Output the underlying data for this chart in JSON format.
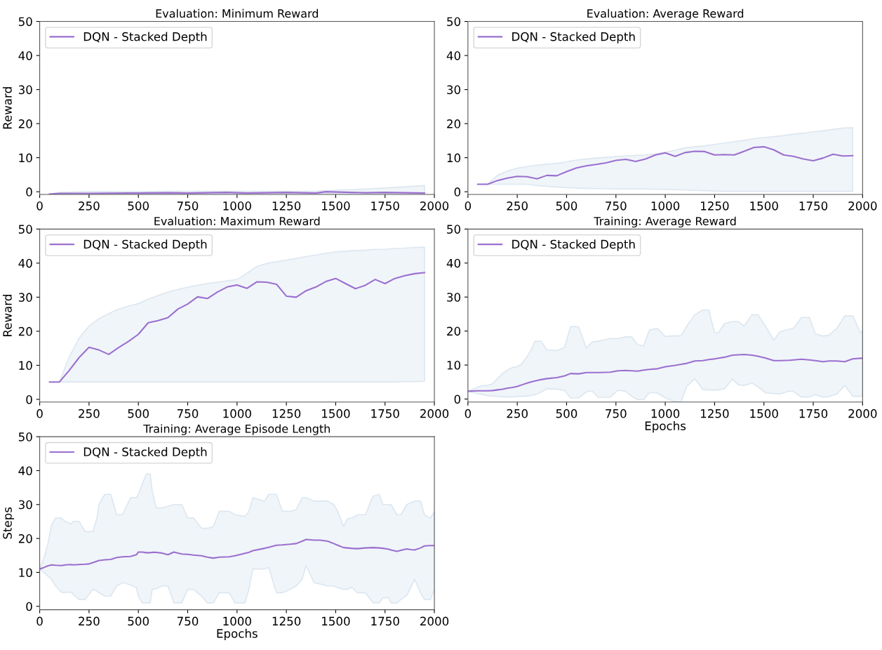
{
  "chart_data": [
    {
      "type": "line",
      "title": "Evaluation: Minimum Reward",
      "ylabel": "Reward",
      "xlim": [
        0,
        2000
      ],
      "ylim": [
        -0.8,
        50
      ],
      "xticks": [
        0,
        250,
        500,
        750,
        1000,
        1250,
        1500,
        1750,
        2000
      ],
      "yticks": [
        0,
        10,
        20,
        30,
        40,
        50
      ],
      "grid": false,
      "legend": "top left",
      "line_style": "solid",
      "marker": "none",
      "series": [
        {
          "name": "DQN - Stacked Depth",
          "color": "#9b6fcf",
          "x": [
            50,
            100,
            250,
            450,
            500,
            650,
            750,
            950,
            1050,
            1250,
            1400,
            1450,
            1650,
            1750,
            1950
          ],
          "values": [
            -0.7,
            -0.5,
            -0.5,
            -0.4,
            -0.4,
            -0.3,
            -0.4,
            -0.2,
            -0.4,
            -0.2,
            -0.4,
            0,
            -0.3,
            -0.2,
            -0.4
          ],
          "lower": [
            -0.7,
            -0.7,
            -0.7,
            -0.6,
            -0.6,
            -0.6,
            -0.6,
            -0.5,
            -0.5,
            -0.5,
            -0.5,
            -0.5,
            -0.5,
            -0.5,
            -0.5
          ],
          "upper": [
            -0.7,
            -0.2,
            0,
            0,
            0,
            0.1,
            0.1,
            0.1,
            0.1,
            0.1,
            0.1,
            0.3,
            0.8,
            1.1,
            1.8
          ]
        }
      ]
    },
    {
      "type": "line",
      "title": "Evaluation: Average Reward",
      "xlim": [
        0,
        2000
      ],
      "ylim": [
        -0.8,
        50
      ],
      "xticks": [
        0,
        250,
        500,
        750,
        1000,
        1250,
        1500,
        1750,
        2000
      ],
      "yticks": [
        0,
        10,
        20,
        30,
        40,
        50
      ],
      "grid": false,
      "legend": "top left",
      "line_style": "solid",
      "marker": "none",
      "series": [
        {
          "name": "DQN - Stacked Depth",
          "color": "#9b6fcf",
          "x": [
            50,
            100,
            150,
            200,
            250,
            300,
            350,
            400,
            450,
            500,
            550,
            600,
            650,
            700,
            750,
            800,
            850,
            900,
            950,
            1000,
            1050,
            1100,
            1150,
            1200,
            1250,
            1300,
            1350,
            1400,
            1450,
            1500,
            1550,
            1600,
            1650,
            1700,
            1750,
            1800,
            1850,
            1900,
            1950
          ],
          "values": [
            2.2,
            2.2,
            3.3,
            4.0,
            4.5,
            4.4,
            3.8,
            4.8,
            4.7,
            5.9,
            7.0,
            7.6,
            8.0,
            8.5,
            9.2,
            9.5,
            8.9,
            9.6,
            10.8,
            11.4,
            10.4,
            11.5,
            11.9,
            11.8,
            10.8,
            10.9,
            10.8,
            11.9,
            13.0,
            13.2,
            12.3,
            10.8,
            10.4,
            9.6,
            9.1,
            9.9,
            11.0,
            10.5,
            10.6
          ],
          "lower": [
            2.2,
            2.2,
            2.2,
            2.2,
            2.2,
            2.2,
            1.8,
            1.6,
            1.4,
            1.2,
            1.1,
            1.0,
            0.9,
            0.9,
            0.8,
            0.8,
            0.8,
            0.8,
            0.7,
            0.7,
            0.6,
            0.5,
            0.4,
            0.3,
            0.2,
            0.1,
            0.1,
            0.1,
            0.1,
            0.1,
            0.1,
            0.1,
            0.1,
            0.1,
            0.1,
            0.1,
            0.1,
            0.1,
            0.1
          ],
          "upper": [
            2.2,
            2.2,
            4.8,
            6.1,
            6.9,
            7.4,
            7.8,
            8.1,
            8.3,
            8.8,
            9.3,
            9.6,
            9.9,
            10.1,
            10.3,
            10.5,
            10.7,
            10.8,
            11.1,
            11.6,
            12.2,
            12.9,
            13.2,
            13.5,
            13.9,
            14.3,
            14.7,
            15.1,
            15.6,
            15.9,
            16.2,
            16.5,
            16.9,
            17.2,
            17.6,
            17.9,
            18.3,
            18.7,
            18.8
          ]
        }
      ]
    },
    {
      "type": "line",
      "title": "Evaluation: Maximum Reward",
      "ylabel": "Reward",
      "xlim": [
        0,
        2000
      ],
      "ylim": [
        -0.8,
        50
      ],
      "xticks": [
        0,
        250,
        500,
        750,
        1000,
        1250,
        1500,
        1750,
        2000
      ],
      "yticks": [
        0,
        10,
        20,
        30,
        40,
        50
      ],
      "grid": false,
      "legend": "top left",
      "line_style": "solid",
      "marker": "none",
      "series": [
        {
          "name": "DQN - Stacked Depth",
          "color": "#9b6fcf",
          "x": [
            50,
            100,
            150,
            200,
            250,
            300,
            350,
            400,
            450,
            500,
            550,
            600,
            650,
            700,
            750,
            800,
            850,
            900,
            950,
            1000,
            1050,
            1100,
            1150,
            1200,
            1250,
            1300,
            1350,
            1400,
            1450,
            1500,
            1550,
            1600,
            1650,
            1700,
            1750,
            1800,
            1850,
            1900,
            1950
          ],
          "values": [
            5.1,
            5.1,
            8.5,
            12.3,
            15.3,
            14.5,
            13.2,
            15.2,
            17.0,
            19.1,
            22.5,
            23.1,
            24.0,
            26.5,
            28.0,
            30.1,
            29.6,
            31.5,
            33.0,
            33.6,
            32.6,
            34.5,
            34.4,
            33.8,
            30.3,
            30.0,
            31.9,
            33.0,
            34.6,
            35.5,
            34.0,
            32.5,
            33.5,
            35.2,
            34.0,
            35.5,
            36.3,
            36.9,
            37.2
          ],
          "lower": [
            5.1,
            5.1,
            5.1,
            5.1,
            5.1,
            5.1,
            5.1,
            5.1,
            5.1,
            5.1,
            5.1,
            5.1,
            5.1,
            5.1,
            5.1,
            5.1,
            5.1,
            5.1,
            5.1,
            5.1,
            5.1,
            5.1,
            5.1,
            5.1,
            5.1,
            5.1,
            5.1,
            5.1,
            5.1,
            5.1,
            5.1,
            5.1,
            5.1,
            5.1,
            5.1,
            5.1,
            5.2,
            5.2,
            5.3
          ],
          "upper": [
            5.1,
            5.1,
            12.5,
            18.0,
            21.5,
            23.7,
            25.2,
            26.5,
            27.4,
            28.1,
            29.4,
            30.5,
            31.5,
            32.3,
            32.9,
            33.5,
            34.0,
            34.4,
            34.8,
            35.2,
            37.0,
            39.0,
            39.9,
            40.4,
            40.9,
            41.4,
            41.9,
            42.4,
            42.9,
            43.3,
            43.5,
            43.7,
            43.8,
            44.0,
            44.1,
            44.3,
            44.4,
            44.6,
            44.7
          ]
        }
      ]
    },
    {
      "type": "line",
      "title": "Training: Average Reward",
      "xlabel": "Epochs",
      "xlim": [
        0,
        2000
      ],
      "ylim": [
        -0.9,
        50
      ],
      "xticks": [
        0,
        250,
        500,
        750,
        1000,
        1250,
        1500,
        1750,
        2000
      ],
      "yticks": [
        0,
        10,
        20,
        30,
        40,
        50
      ],
      "grid": false,
      "legend": "top left",
      "line_style": "solid",
      "marker": "none",
      "series": [
        {
          "name": "DQN - Stacked Depth",
          "color": "#9b6fcf",
          "x": [
            0,
            50,
            75,
            100,
            125,
            150,
            175,
            200,
            225,
            250,
            275,
            300,
            325,
            340,
            370,
            400,
            450,
            490,
            520,
            560,
            600,
            630,
            660,
            720,
            760,
            800,
            830,
            860,
            890,
            920,
            960,
            1000,
            1050,
            1080,
            1110,
            1150,
            1190,
            1220,
            1250,
            1270,
            1300,
            1340,
            1370,
            1400,
            1440,
            1470,
            1510,
            1550,
            1580,
            1630,
            1650,
            1690,
            1730,
            1760,
            1800,
            1830,
            1870,
            1910,
            1950,
            1990,
            2000
          ],
          "values": [
            2.3,
            2.4,
            2.4,
            2.4,
            2.5,
            2.7,
            2.9,
            3.2,
            3.4,
            3.7,
            4.2,
            4.7,
            5.1,
            5.3,
            5.7,
            6.0,
            6.3,
            6.8,
            7.5,
            7.4,
            7.8,
            7.8,
            7.8,
            7.9,
            8.3,
            8.4,
            8.3,
            8.2,
            8.5,
            8.7,
            8.9,
            9.5,
            9.9,
            10.2,
            10.5,
            11.2,
            11.3,
            11.6,
            11.8,
            12.0,
            12.3,
            12.9,
            13.0,
            13.1,
            12.9,
            12.6,
            12.0,
            11.3,
            11.3,
            11.4,
            11.5,
            11.7,
            11.5,
            11.3,
            11.0,
            11.2,
            11.2,
            11.0,
            11.8,
            12.0,
            12.0
          ],
          "lower": [
            2.3,
            1.6,
            1.3,
            1.0,
            0.9,
            0.8,
            0.7,
            0.6,
            0.6,
            0.8,
            0.8,
            0.9,
            1.1,
            1.3,
            2.0,
            3.0,
            2.9,
            2.5,
            0.3,
            0.3,
            2.1,
            2.4,
            0.5,
            0.5,
            2.6,
            2.3,
            0.8,
            -0.2,
            -0.2,
            1.9,
            1.8,
            0.3,
            -0.8,
            -0.8,
            3.8,
            6.0,
            2.8,
            2.7,
            2.6,
            2.7,
            3.0,
            5.9,
            4.2,
            4.0,
            4.7,
            3.6,
            1.8,
            1.6,
            1.5,
            2.4,
            2.2,
            0.6,
            0.6,
            1.3,
            0.5,
            0.7,
            1.5,
            4.0,
            0.8,
            0.8,
            1.0
          ],
          "upper": [
            2.3,
            3.5,
            4.0,
            4.0,
            4.5,
            6.0,
            7.5,
            8.5,
            9.3,
            9.5,
            10.5,
            12.5,
            15.0,
            17.0,
            17.0,
            14.5,
            14.2,
            15.2,
            21.3,
            21.3,
            15.0,
            16.8,
            17.0,
            17.8,
            17.8,
            18.3,
            18.3,
            16.0,
            15.6,
            20.3,
            20.8,
            18.4,
            18.6,
            18.6,
            21.5,
            24.8,
            26.2,
            26.2,
            19.5,
            19.5,
            22.2,
            22.8,
            22.8,
            21.5,
            24.8,
            24.8,
            21.2,
            17.3,
            19.7,
            20.6,
            20.8,
            24.0,
            24.0,
            19.2,
            18.5,
            18.8,
            20.8,
            24.5,
            24.5,
            19.4,
            20.2
          ]
        }
      ]
    },
    {
      "type": "line",
      "title": "Training: Average Episode Length",
      "xlabel": "Epochs",
      "ylabel": "Steps",
      "xlim": [
        0,
        2000
      ],
      "ylim": [
        -1,
        50
      ],
      "xticks": [
        0,
        250,
        500,
        750,
        1000,
        1250,
        1500,
        1750,
        2000
      ],
      "yticks": [
        0,
        10,
        20,
        30,
        40,
        50
      ],
      "grid": false,
      "legend": "top left",
      "line_style": "solid",
      "marker": "none",
      "series": [
        {
          "name": "DQN - Stacked Depth",
          "color": "#9b6fcf",
          "x": [
            0,
            20,
            40,
            60,
            80,
            110,
            130,
            160,
            170,
            200,
            230,
            250,
            270,
            290,
            300,
            330,
            360,
            390,
            420,
            460,
            490,
            500,
            520,
            540,
            560,
            570,
            590,
            620,
            650,
            680,
            720,
            750,
            780,
            820,
            850,
            880,
            910,
            960,
            990,
            1040,
            1060,
            1080,
            1140,
            1160,
            1200,
            1230,
            1270,
            1300,
            1330,
            1350,
            1390,
            1420,
            1460,
            1490,
            1510,
            1540,
            1560,
            1580,
            1610,
            1650,
            1690,
            1720,
            1740,
            1770,
            1780,
            1810,
            1830,
            1860,
            1880,
            1900,
            1930,
            1950,
            1980,
            2000
          ],
          "values": [
            11,
            11.4,
            11.9,
            12.2,
            12.1,
            12.0,
            12.2,
            12.3,
            12.2,
            12.3,
            12.4,
            12.5,
            12.9,
            13.3,
            13.5,
            13.7,
            13.8,
            14.4,
            14.6,
            14.7,
            15.2,
            16,
            16,
            15.8,
            15.8,
            15.9,
            15.9,
            15.7,
            15.2,
            16,
            15.4,
            15.3,
            15.1,
            14.9,
            14.5,
            14.2,
            14.5,
            14.6,
            14.9,
            15.6,
            15.9,
            16.4,
            17.1,
            17.4,
            18,
            18.1,
            18.3,
            18.5,
            19.2,
            19.7,
            19.5,
            19.5,
            19.2,
            18.5,
            18,
            17.3,
            17.2,
            17.1,
            17,
            17.2,
            17.3,
            17.2,
            17.1,
            16.8,
            16.6,
            16.2,
            16.5,
            16.9,
            16.7,
            16.6,
            17.2,
            17.8,
            17.9,
            17.9
          ],
          "lower": [
            11,
            10,
            9,
            8,
            6,
            4.1,
            4.1,
            4.2,
            3.5,
            2,
            2,
            3.5,
            5,
            4.5,
            4,
            3,
            3,
            6,
            7,
            6.3,
            5.5,
            3,
            1,
            1,
            1,
            5,
            5.2,
            6,
            6,
            1,
            1,
            5,
            5,
            3,
            1,
            1,
            4,
            4,
            1,
            1,
            5,
            11,
            11,
            11.5,
            4,
            4,
            5,
            6,
            8,
            12,
            7,
            6.6,
            6,
            6,
            5.5,
            5,
            5,
            5.6,
            4,
            4,
            1,
            1,
            2.5,
            2.5,
            1,
            1,
            2,
            3.2,
            5.5,
            8,
            4,
            2,
            2,
            5
          ],
          "upper": [
            11,
            14,
            18,
            24,
            26,
            26,
            25,
            24.3,
            25,
            25,
            22,
            22,
            22,
            26,
            30,
            33,
            33,
            27,
            27,
            32,
            32,
            33,
            36,
            39,
            39,
            34,
            29,
            29,
            29.5,
            30,
            30,
            26,
            26,
            23,
            23,
            23.5,
            28,
            28,
            27,
            26.5,
            28,
            32,
            31,
            33,
            33,
            28,
            28,
            28.5,
            32,
            32,
            31,
            31,
            31,
            30,
            28,
            23.5,
            25.8,
            26,
            27,
            27,
            32.5,
            33,
            30,
            30,
            30,
            27,
            27,
            30,
            30.5,
            31,
            31,
            27,
            26,
            28
          ]
        }
      ]
    }
  ]
}
